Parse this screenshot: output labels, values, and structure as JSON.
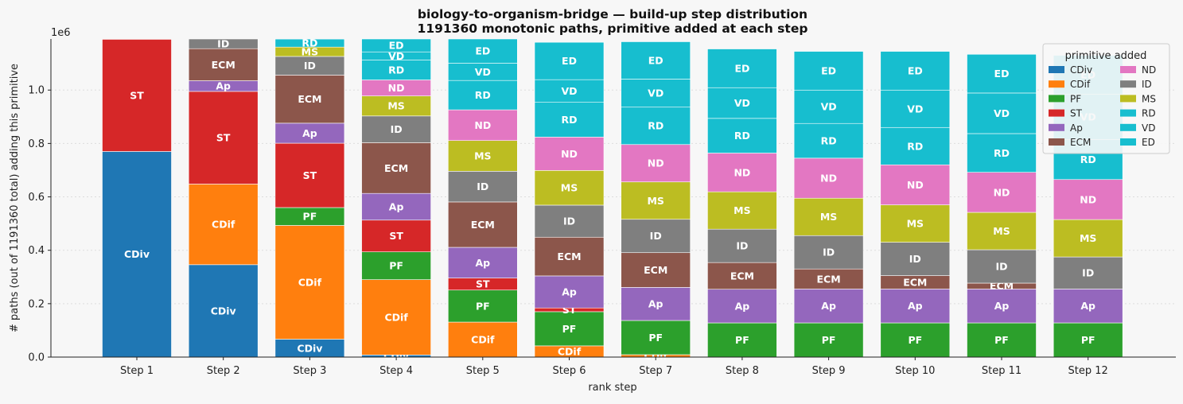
{
  "chart_data": {
    "type": "bar",
    "stacked": true,
    "title": "biology-to-organism-bridge — build-up step distribution",
    "subtitle": "1191360 monotonic paths, primitive added at each step",
    "xlabel": "rank step",
    "ylabel": "# paths (out of 1191360 total) adding this primitive",
    "y_offset_label": "1e6",
    "y_tick_labels": [
      "0.0",
      "0.2",
      "0.4",
      "0.6",
      "0.8",
      "1.0"
    ],
    "y_ticks": [
      0,
      0.2,
      0.4,
      0.6,
      0.8,
      1.0
    ],
    "ylim": [
      0,
      1.19136
    ],
    "grid": "horizontal dotted",
    "legend_title": "primitive added",
    "legend_position": "top-right",
    "categories": [
      "Step 1",
      "Step 2",
      "Step 3",
      "Step 4",
      "Step 5",
      "Step 6",
      "Step 7",
      "Step 8",
      "Step 9",
      "Step 10",
      "Step 11",
      "Step 12"
    ],
    "series": [
      {
        "name": "CDiv",
        "color": "#1f77b4",
        "values": [
          0.77,
          0.346,
          0.067,
          0.008,
          0,
          0,
          0,
          0,
          0,
          0,
          0,
          0
        ]
      },
      {
        "name": "CDif",
        "color": "#ff7f0e",
        "values": [
          0,
          0.302,
          0.426,
          0.282,
          0.131,
          0.042,
          0.009,
          0,
          0,
          0,
          0,
          0
        ]
      },
      {
        "name": "PF",
        "color": "#2ca02c",
        "values": [
          0,
          0,
          0.067,
          0.104,
          0.12,
          0.128,
          0.128,
          0.128,
          0.128,
          0.128,
          0.128,
          0.128
        ]
      },
      {
        "name": "ST",
        "color": "#d62728",
        "values": [
          0.42,
          0.347,
          0.241,
          0.119,
          0.045,
          0.014,
          0,
          0,
          0,
          0,
          0,
          0
        ]
      },
      {
        "name": "Ap",
        "color": "#9467bd",
        "values": [
          0,
          0.04,
          0.075,
          0.1,
          0.115,
          0.12,
          0.124,
          0.126,
          0.127,
          0.127,
          0.127,
          0.127
        ]
      },
      {
        "name": "ECM",
        "color": "#8c564b",
        "values": [
          0,
          0.12,
          0.18,
          0.19,
          0.17,
          0.145,
          0.13,
          0.1,
          0.075,
          0.05,
          0.022,
          0
        ]
      },
      {
        "name": "ID",
        "color": "#7f7f7f",
        "values": [
          0,
          0.043,
          0.07,
          0.1,
          0.115,
          0.12,
          0.125,
          0.125,
          0.125,
          0.125,
          0.125,
          0.12
        ]
      },
      {
        "name": "MS",
        "color": "#bcbd22",
        "values": [
          0,
          0,
          0.035,
          0.075,
          0.115,
          0.13,
          0.14,
          0.14,
          0.14,
          0.14,
          0.14,
          0.14
        ]
      },
      {
        "name": "ND",
        "color": "#e377c2",
        "values": [
          0,
          0,
          0,
          0.06,
          0.115,
          0.125,
          0.14,
          0.145,
          0.15,
          0.15,
          0.15,
          0.15
        ]
      },
      {
        "name": "RD",
        "color": "#17becf",
        "values": [
          0,
          0,
          0.03,
          0.075,
          0.11,
          0.13,
          0.14,
          0.13,
          0.13,
          0.14,
          0.145,
          0.15
        ]
      },
      {
        "name": "VD",
        "color": "#17becf",
        "values": [
          0,
          0,
          0,
          0.03,
          0.065,
          0.085,
          0.105,
          0.115,
          0.125,
          0.14,
          0.152,
          0.17
        ]
      },
      {
        "name": "ED",
        "color": "#17becf",
        "values": [
          0,
          0,
          0,
          0.1,
          0.107,
          0.14,
          0.14,
          0.145,
          0.145,
          0.145,
          0.145,
          0.145
        ]
      }
    ],
    "legend_order": [
      "CDiv",
      "CDif",
      "PF",
      "ST",
      "Ap",
      "ECM",
      "ND",
      "ID",
      "MS",
      "RD",
      "VD",
      "ED"
    ]
  }
}
